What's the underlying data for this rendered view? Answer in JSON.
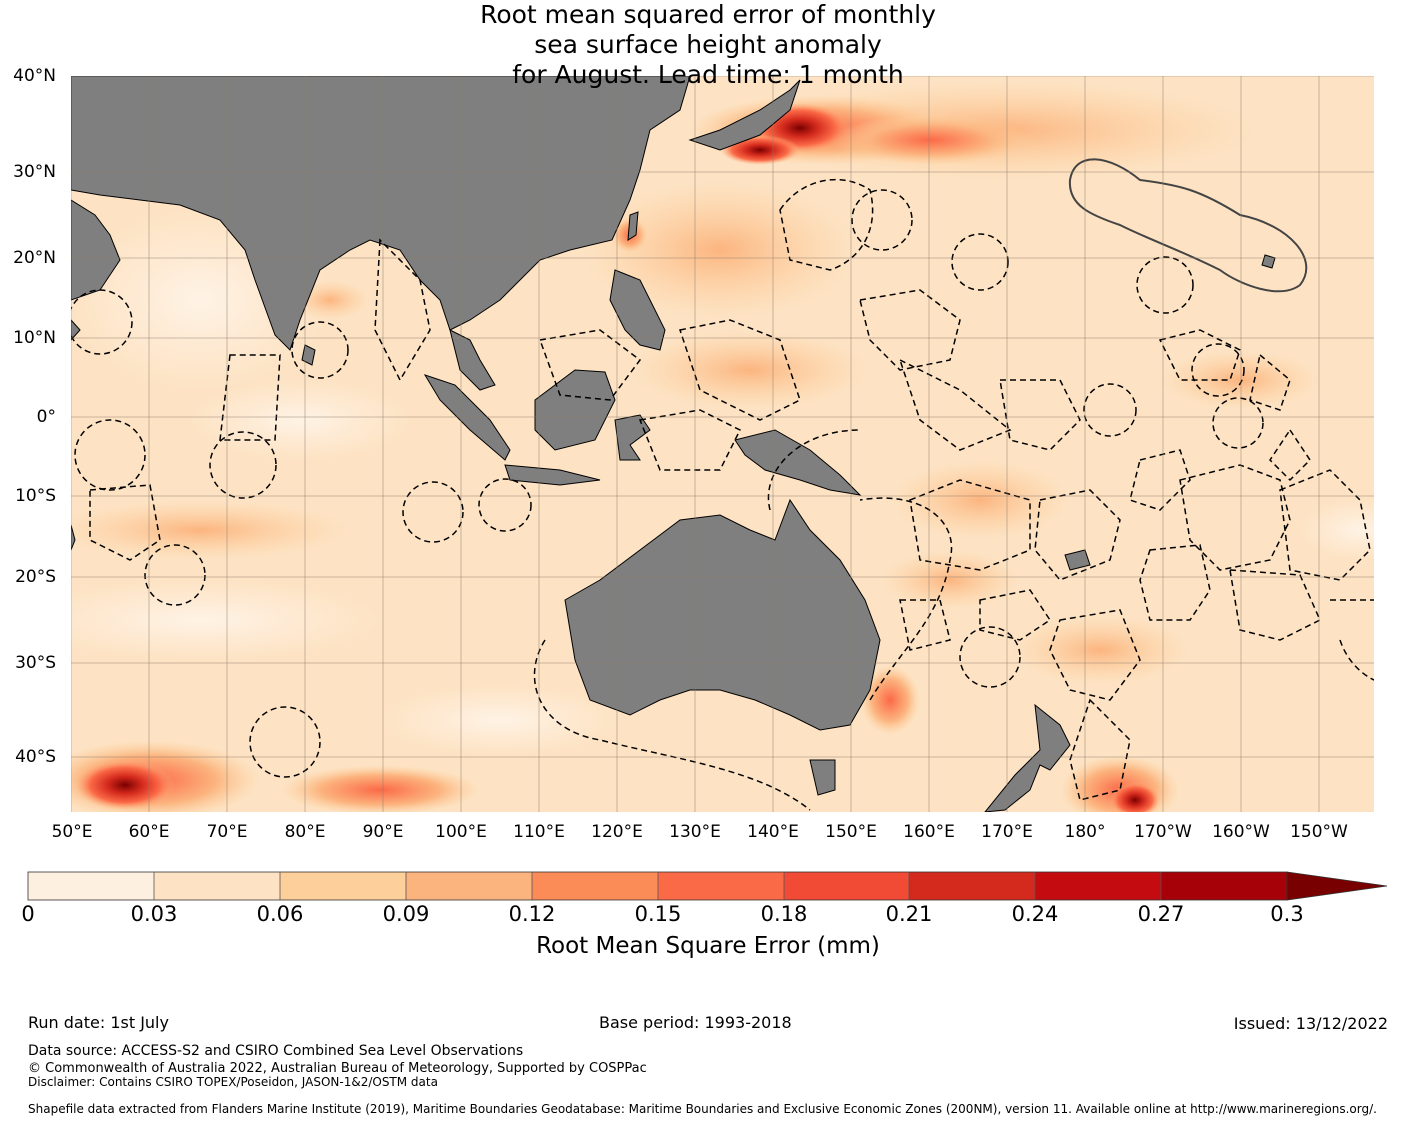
{
  "title": {
    "line1": "Root mean squared error of monthly",
    "line2": "sea surface height anomaly",
    "line3": "for August. Lead time: 1 month"
  },
  "map": {
    "lat_labels": [
      "40°N",
      "30°N",
      "20°N",
      "10°N",
      "0°",
      "10°S",
      "20°S",
      "30°S",
      "40°S"
    ],
    "lon_labels": [
      "50°E",
      "60°E",
      "70°E",
      "80°E",
      "90°E",
      "100°E",
      "110°E",
      "120°E",
      "130°E",
      "140°E",
      "150°E",
      "160°E",
      "170°E",
      "180°",
      "170°W",
      "160°W",
      "150°W"
    ],
    "colors": {
      "land": "#7f7f7f",
      "ocean_base": "#fde3c4",
      "grid": "#8a7a6a"
    }
  },
  "colorbar": {
    "title": "Root Mean Square Error (mm)",
    "ticks": [
      "0",
      "0.03",
      "0.06",
      "0.09",
      "0.12",
      "0.15",
      "0.18",
      "0.21",
      "0.24",
      "0.27",
      "0.3"
    ],
    "colors": [
      "#fef0e0",
      "#fde3c4",
      "#fdcf9a",
      "#fcb47f",
      "#fc8c57",
      "#fb6a47",
      "#f14b36",
      "#d42a1d",
      "#c40b0f",
      "#a60008",
      "#780000"
    ],
    "extend_color": "#780000"
  },
  "footer": {
    "run_date": "Run date: 1st July",
    "base_period": "Base period: 1993-2018",
    "issued": "Issued: 13/12/2022",
    "data_source": "Data source: ACCESS-S2 and CSIRO Combined Sea Level Observations",
    "copyright": "© Commonwealth of Australia 2022, Australian Bureau of Meteorology, Supported by COSPPac",
    "disclaimer": "Disclaimer: Contains CSIRO TOPEX/Poseidon, JASON-1&2/OSTM data",
    "shapefile": "Shapefile data extracted from Flanders Marine Institute (2019), Maritime Boundaries Geodatabase: Maritime Boundaries and Exclusive Economic Zones (200NM), version 11. Available online at http://www.marineregions.org/."
  }
}
